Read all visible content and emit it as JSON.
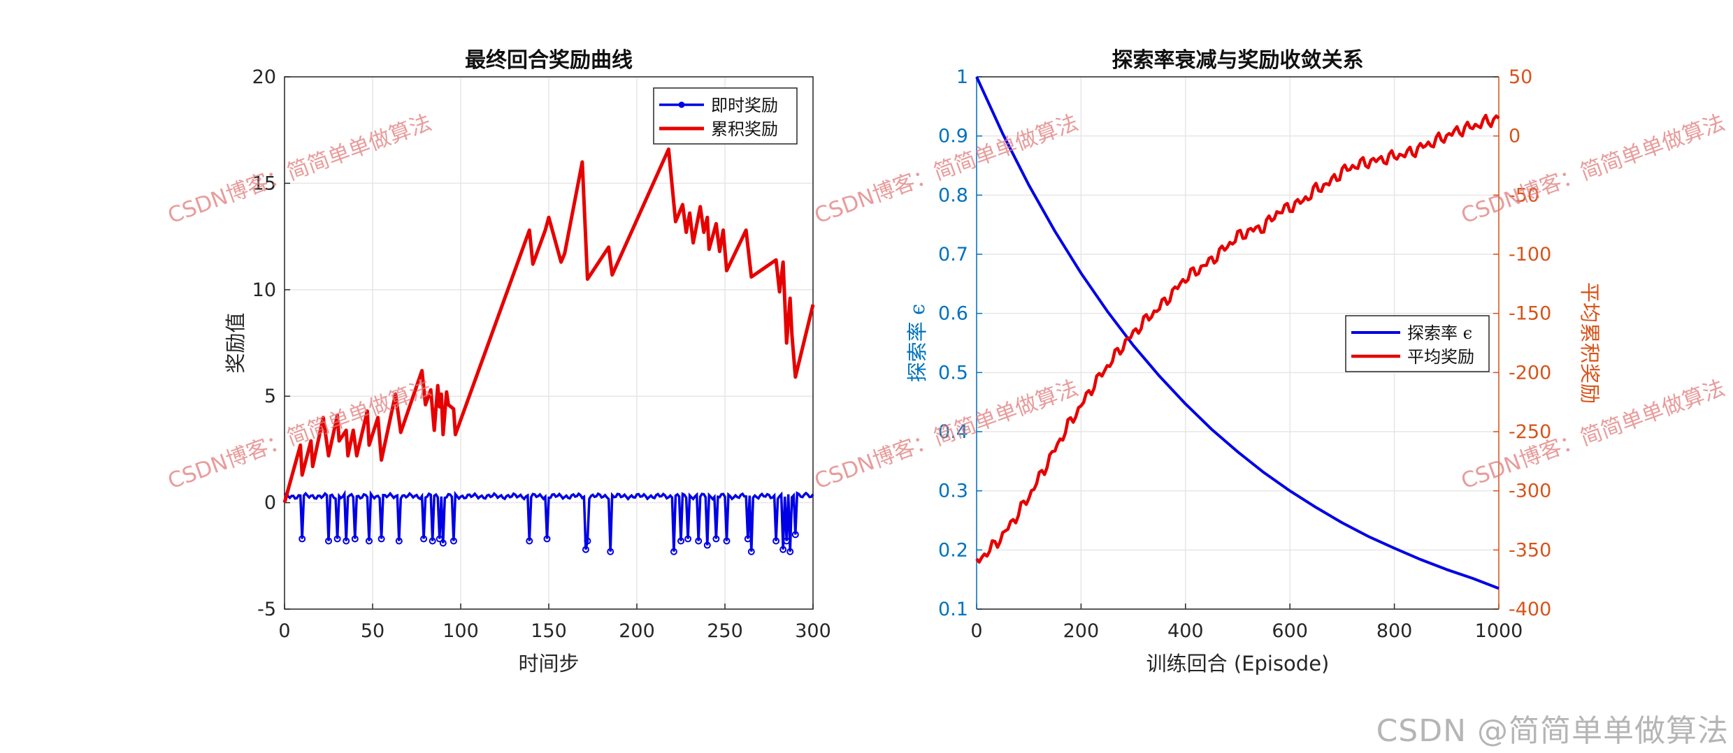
{
  "chart_data": [
    {
      "type": "line",
      "title": "最终回合奖励曲线",
      "xlabel": "时间步",
      "ylabel": "奖励值",
      "xlim": [
        0,
        300
      ],
      "ylim": [
        -5,
        20
      ],
      "xticks": [
        0,
        50,
        100,
        150,
        200,
        250,
        300
      ],
      "yticks": [
        -5,
        0,
        5,
        10,
        15,
        20
      ],
      "grid": true,
      "legend_position": "top-right",
      "series": [
        {
          "name": "即时奖励",
          "color": "#0000e6",
          "marker": "o",
          "baseline": 0.3,
          "dips": [
            [
              10,
              -1.7
            ],
            [
              25,
              -1.8
            ],
            [
              30,
              -1.7
            ],
            [
              35,
              -1.8
            ],
            [
              40,
              -1.7
            ],
            [
              48,
              -1.8
            ],
            [
              55,
              -1.7
            ],
            [
              65,
              -1.8
            ],
            [
              79,
              -1.7
            ],
            [
              84,
              -1.8
            ],
            [
              88,
              -1.7
            ],
            [
              90,
              -1.9
            ],
            [
              96,
              -1.8
            ],
            [
              139,
              -1.8
            ],
            [
              149,
              -1.7
            ],
            [
              171,
              -2.2
            ],
            [
              172,
              -1.8
            ],
            [
              185,
              -2.3
            ],
            [
              221,
              -2.3
            ],
            [
              225,
              -1.8
            ],
            [
              229,
              -1.7
            ],
            [
              235,
              -1.8
            ],
            [
              240,
              -2.0
            ],
            [
              245,
              -1.7
            ],
            [
              251,
              -1.8
            ],
            [
              263,
              -1.7
            ],
            [
              265,
              -2.3
            ],
            [
              279,
              -1.8
            ],
            [
              283,
              -2.2
            ],
            [
              285,
              -1.8
            ],
            [
              287,
              -2.3
            ],
            [
              290,
              -1.5
            ]
          ]
        },
        {
          "name": "累积奖励",
          "color": "#e60000",
          "x": [
            0,
            9,
            10,
            15,
            16,
            22,
            25,
            30,
            31,
            35,
            36,
            39,
            41,
            47,
            48,
            53,
            55,
            63,
            66,
            78,
            80,
            83,
            85,
            87,
            88,
            89,
            90,
            92,
            93,
            96,
            97,
            139,
            141,
            148,
            150,
            157,
            159,
            169,
            172,
            184,
            186,
            218,
            222,
            226,
            228,
            230,
            232,
            236,
            238,
            240,
            241,
            245,
            247,
            249,
            251,
            262,
            265,
            279,
            281,
            283,
            285,
            287,
            288,
            290,
            300
          ],
          "y": [
            0,
            2.7,
            1.3,
            2.9,
            1.7,
            4.0,
            2.2,
            4.1,
            2.9,
            3.4,
            2.2,
            3.4,
            2.2,
            4.3,
            2.7,
            4.0,
            2.0,
            5.1,
            3.3,
            6.2,
            4.6,
            5.3,
            3.4,
            5.5,
            4.5,
            5.1,
            3.2,
            5.2,
            4.6,
            4.4,
            3.2,
            12.8,
            11.2,
            12.8,
            13.4,
            11.3,
            11.7,
            16.0,
            10.5,
            12.0,
            10.7,
            16.6,
            13.2,
            14.0,
            12.7,
            13.6,
            12.2,
            13.9,
            12.7,
            13.4,
            11.9,
            13.1,
            11.8,
            12.8,
            10.9,
            12.8,
            10.6,
            11.4,
            9.9,
            11.3,
            7.5,
            9.6,
            7.9,
            5.9,
            9.3
          ]
        }
      ]
    },
    {
      "type": "line",
      "title": "探索率衰减与奖励收敛关系",
      "xlabel": "训练回合 (Episode)",
      "ylabel_left": "探索率 ϵ",
      "ylabel_right": "平均累积奖励",
      "xlim": [
        0,
        1000
      ],
      "ylim_left": [
        0.1,
        1
      ],
      "ylim_right": [
        -400,
        50
      ],
      "xticks": [
        0,
        200,
        400,
        600,
        800,
        1000
      ],
      "yticks_left": [
        0.1,
        0.2,
        0.3,
        0.4,
        0.5,
        0.6,
        0.7,
        0.8,
        0.9,
        1
      ],
      "yticks_left_labels": [
        "0.1",
        "0.2",
        "0.3",
        "0.4",
        "0.5",
        "0.6",
        "0.7",
        "0.8",
        "0.9",
        "1"
      ],
      "yticks_right": [
        -400,
        -350,
        -300,
        -250,
        -200,
        -150,
        -100,
        -50,
        0,
        50
      ],
      "grid": true,
      "legend_position": "center-right",
      "left_axis_color": "#0072bd",
      "right_axis_color": "#d95319",
      "series": [
        {
          "name": "探索率 ϵ",
          "color": "#0000e6",
          "axis": "left",
          "x": [
            0,
            50,
            100,
            150,
            200,
            250,
            300,
            350,
            400,
            450,
            500,
            550,
            600,
            650,
            700,
            750,
            800,
            850,
            900,
            950,
            1000
          ],
          "y": [
            1.0,
            0.904,
            0.817,
            0.739,
            0.668,
            0.604,
            0.546,
            0.494,
            0.447,
            0.404,
            0.366,
            0.331,
            0.3,
            0.272,
            0.246,
            0.223,
            0.203,
            0.184,
            0.167,
            0.152,
            0.135
          ]
        },
        {
          "name": "平均奖励",
          "color": "#e60000",
          "axis": "right",
          "x": [
            0,
            25,
            50,
            75,
            100,
            125,
            150,
            175,
            200,
            225,
            250,
            275,
            300,
            325,
            350,
            375,
            400,
            425,
            450,
            475,
            500,
            525,
            550,
            575,
            600,
            625,
            650,
            675,
            700,
            725,
            750,
            775,
            800,
            825,
            850,
            875,
            900,
            925,
            950,
            975,
            1000
          ],
          "y": [
            -360,
            -350,
            -338,
            -322,
            -305,
            -285,
            -265,
            -245,
            -228,
            -210,
            -195,
            -180,
            -167,
            -155,
            -145,
            -133,
            -120,
            -113,
            -105,
            -95,
            -85,
            -80,
            -77,
            -65,
            -60,
            -55,
            -45,
            -40,
            -30,
            -25,
            -22,
            -20,
            -17,
            -15,
            -10,
            -5,
            0,
            5,
            8,
            12,
            15
          ]
        }
      ]
    }
  ],
  "watermark": "CSDN博客：简简单单做算法",
  "credit": "CSDN @简简单单做算法"
}
